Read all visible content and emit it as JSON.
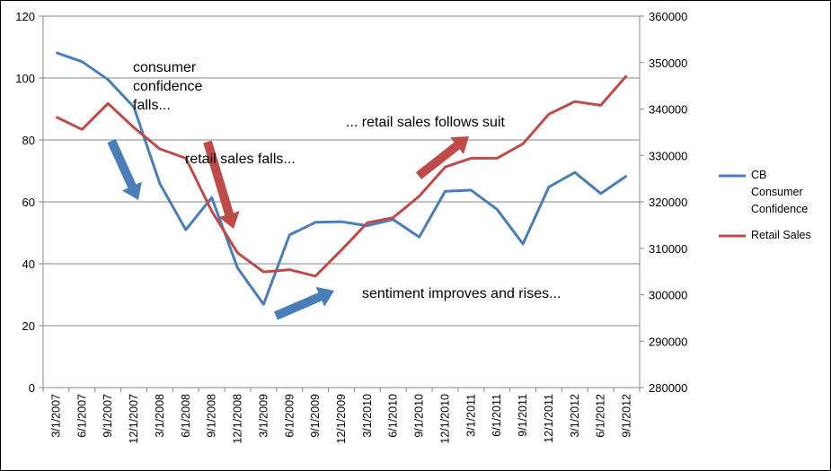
{
  "chart_data": {
    "type": "line",
    "categories": [
      "3/1/2007",
      "6/1/2007",
      "9/1/2007",
      "12/1/2007",
      "3/1/2008",
      "6/1/2008",
      "9/1/2008",
      "12/1/2008",
      "3/1/2009",
      "6/1/2009",
      "9/1/2009",
      "12/1/2009",
      "3/1/2010",
      "6/1/2010",
      "9/1/2010",
      "12/1/2010",
      "3/1/2011",
      "6/1/2011",
      "9/1/2011",
      "12/1/2011",
      "3/1/2012",
      "6/1/2012",
      "9/1/2012"
    ],
    "y_left": {
      "min": 0,
      "max": 120,
      "step": 20,
      "ticks": [
        "0",
        "20",
        "40",
        "60",
        "80",
        "100",
        "120"
      ]
    },
    "y_right": {
      "min": 280000,
      "max": 360000,
      "step": 10000,
      "ticks": [
        "280000",
        "290000",
        "300000",
        "310000",
        "320000",
        "330000",
        "340000",
        "350000",
        "360000"
      ]
    },
    "grid": true,
    "legend_position": "right",
    "series": [
      {
        "name": "CB Consumer Confidence",
        "legend_lines": [
          "CB",
          "Consumer",
          "Confidence"
        ],
        "axis": "left",
        "color": "#4a7ebb",
        "values": [
          108.2,
          105.3,
          99.5,
          90.6,
          65.9,
          51.0,
          61.4,
          38.6,
          26.9,
          49.3,
          53.4,
          53.6,
          52.3,
          54.3,
          48.6,
          63.4,
          63.8,
          57.6,
          46.4,
          64.8,
          69.5,
          62.7,
          68.4
        ]
      },
      {
        "name": "Retail Sales",
        "legend_lines": [
          "Retail Sales"
        ],
        "axis": "right",
        "color": "#be4b48",
        "values": [
          338300,
          335600,
          341200,
          336000,
          331400,
          329400,
          318000,
          309000,
          304900,
          305400,
          304000,
          309600,
          315500,
          316600,
          321200,
          327500,
          329400,
          329400,
          332500,
          338900,
          341600,
          340800,
          347200
        ]
      }
    ],
    "annotations": [
      {
        "id": "consumer-confidence-falls",
        "lines": [
          "consumer",
          "confidence",
          "falls..."
        ]
      },
      {
        "id": "retail-sales-falls",
        "lines": [
          "retail sales falls..."
        ]
      },
      {
        "id": "sentiment-improves",
        "lines": [
          "sentiment improves and rises..."
        ]
      },
      {
        "id": "retail-follows-suit",
        "lines": [
          "... retail sales follows suit"
        ]
      }
    ],
    "arrows": [
      {
        "id": "confidence-down-arrow",
        "color": "#4a7ebb"
      },
      {
        "id": "retail-down-arrow",
        "color": "#be4b48"
      },
      {
        "id": "sentiment-up-arrow",
        "color": "#4a7ebb"
      },
      {
        "id": "retail-up-arrow",
        "color": "#be4b48"
      }
    ]
  }
}
